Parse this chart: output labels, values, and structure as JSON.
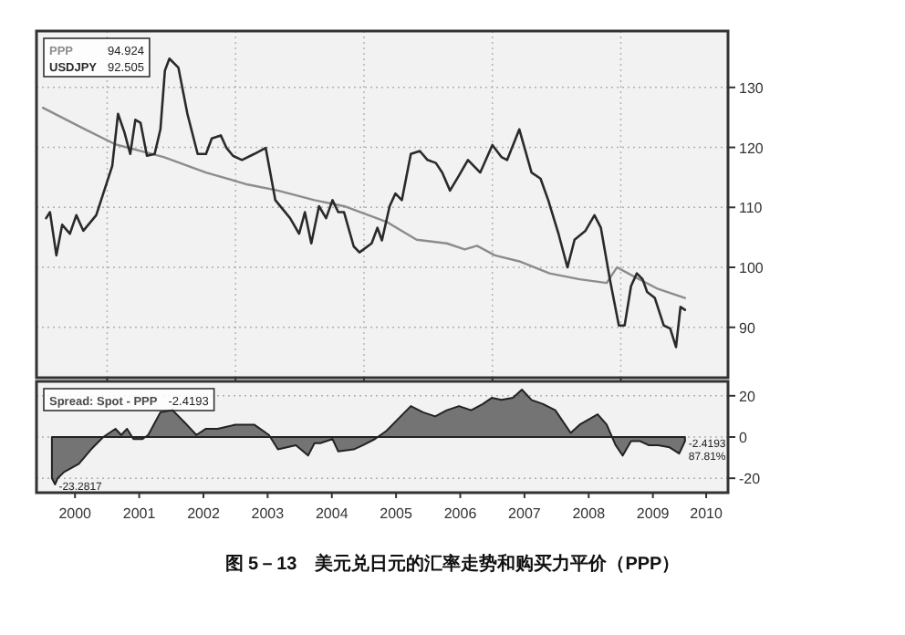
{
  "chart_data": [
    {
      "type": "line",
      "xlim": [
        1999.9,
        2010.67
      ],
      "ylim": [
        81.6,
        139.4
      ],
      "yticks": [
        90,
        100,
        110,
        120,
        130
      ],
      "xticks": [
        {
          "value": 2001,
          "label": null
        },
        {
          "value": 2003,
          "label": null
        },
        {
          "value": 2005,
          "label": null
        },
        {
          "value": 2007,
          "label": null
        },
        {
          "value": 2009,
          "label": null
        }
      ],
      "tick_labels": "y",
      "grid": true,
      "legend": "top left",
      "annotations": [
        "94.924",
        "92.505"
      ],
      "series": [
        {
          "name": "PPP",
          "color": "#8c8c8c",
          "x": [
            2000.0,
            2000.66,
            2001.13,
            2001.88,
            2002.54,
            2003.19,
            2003.66,
            2004.23,
            2004.69,
            2005.35,
            2005.82,
            2006.29,
            2006.57,
            2006.76,
            2007.04,
            2007.42,
            2007.89,
            2008.36,
            2008.78,
            2008.94,
            2009.2,
            2009.58,
            2010.0
          ],
          "values": [
            126.6,
            123,
            120.5,
            118.4,
            115.8,
            113.8,
            112.8,
            111.2,
            110.2,
            107.6,
            104.6,
            104,
            103,
            103.6,
            102,
            101,
            99,
            98,
            97.4,
            100,
            98.5,
            96.4,
            94.9
          ]
        },
        {
          "name": "USDJPY",
          "color": "#2a2a2a",
          "x": [
            2000.05,
            2000.11,
            2000.21,
            2000.3,
            2000.42,
            2000.52,
            2000.63,
            2000.83,
            2000.94,
            2001.08,
            2001.17,
            2001.27,
            2001.36,
            2001.44,
            2001.52,
            2001.62,
            2001.74,
            2001.83,
            2001.9,
            2001.97,
            2002.11,
            2002.25,
            2002.41,
            2002.54,
            2002.63,
            2002.77,
            2002.86,
            2002.96,
            2003.1,
            2003.29,
            2003.47,
            2003.62,
            2003.85,
            2003.99,
            2004.08,
            2004.18,
            2004.3,
            2004.41,
            2004.51,
            2004.6,
            2004.69,
            2004.84,
            2004.93,
            2005.12,
            2005.21,
            2005.28,
            2005.4,
            2005.49,
            2005.59,
            2005.73,
            2005.87,
            2005.99,
            2006.12,
            2006.22,
            2006.34,
            2006.48,
            2006.62,
            2006.81,
            2007.0,
            2007.14,
            2007.23,
            2007.42,
            2007.61,
            2007.75,
            2007.87,
            2008.03,
            2008.17,
            2008.28,
            2008.45,
            2008.59,
            2008.69,
            2008.83,
            2008.97,
            2009.06,
            2009.16,
            2009.25,
            2009.34,
            2009.41,
            2009.53,
            2009.67,
            2009.77,
            2009.86,
            2009.93,
            2010.0
          ],
          "values": [
            108.2,
            109.2,
            102,
            107.1,
            105.6,
            108.7,
            106.1,
            108.7,
            112.3,
            116.9,
            125.6,
            122.5,
            118.9,
            124.6,
            124.1,
            118.6,
            118.9,
            123,
            132.8,
            134.8,
            133.3,
            125.6,
            118.9,
            118.9,
            121.5,
            122,
            119.9,
            118.6,
            117.9,
            118.9,
            119.9,
            111.2,
            108.2,
            105.6,
            109.2,
            104,
            110.2,
            108.2,
            111.2,
            109.2,
            109.2,
            103.5,
            102.5,
            104,
            106.6,
            104.5,
            110.2,
            112.3,
            111.2,
            118.9,
            119.4,
            117.9,
            117.4,
            115.8,
            112.8,
            115.3,
            117.9,
            115.8,
            120.4,
            118.4,
            117.9,
            123,
            115.8,
            114.8,
            111.2,
            105.6,
            100,
            104.6,
            106.1,
            108.7,
            106.6,
            98,
            90.3,
            90.3,
            96.9,
            99,
            98,
            95.9,
            94.9,
            90.3,
            89.8,
            86.7,
            93.4,
            92.9
          ]
        }
      ]
    },
    {
      "type": "area",
      "xlim": [
        1999.9,
        2010.67
      ],
      "ylim": [
        -27,
        27
      ],
      "yticks": [
        -20,
        0,
        20
      ],
      "xticks": [
        {
          "value": 2000.5,
          "label": "2000"
        },
        {
          "value": 2001.5,
          "label": "2001"
        },
        {
          "value": 2002.5,
          "label": "2002"
        },
        {
          "value": 2003.5,
          "label": "2003"
        },
        {
          "value": 2004.5,
          "label": "2004"
        },
        {
          "value": 2005.5,
          "label": "2005"
        },
        {
          "value": 2006.5,
          "label": "2006"
        },
        {
          "value": 2007.5,
          "label": "2007"
        },
        {
          "value": 2008.5,
          "label": "2008"
        },
        {
          "value": 2009.5,
          "label": "2009"
        },
        {
          "value": 2010.33,
          "label": "2010"
        }
      ],
      "grid": "y",
      "legend": "top left",
      "title": "图 5－13　美元兑日元的汇率走势和购买力平价（PPP）",
      "annotations": [
        "-2.4193",
        "-23.2817",
        "-2.4193",
        "87.81%"
      ],
      "series": [
        {
          "name": "Spread: Spot - PPP",
          "color": "#4a4a4a",
          "x": [
            2000.14,
            2000.19,
            2000.23,
            2000.33,
            2000.56,
            2000.75,
            2000.94,
            2001.13,
            2001.22,
            2001.31,
            2001.41,
            2001.55,
            2001.64,
            2001.83,
            2002.02,
            2002.21,
            2002.39,
            2002.54,
            2002.72,
            2003.0,
            2003.29,
            2003.52,
            2003.66,
            2003.94,
            2004.13,
            2004.23,
            2004.32,
            2004.51,
            2004.6,
            2004.84,
            2004.98,
            2005.17,
            2005.35,
            2005.54,
            2005.73,
            2005.92,
            2006.11,
            2006.29,
            2006.48,
            2006.67,
            2006.85,
            2006.99,
            2007.14,
            2007.32,
            2007.46,
            2007.61,
            2007.79,
            2007.98,
            2008.22,
            2008.36,
            2008.64,
            2008.78,
            2008.92,
            2009.03,
            2009.16,
            2009.3,
            2009.44,
            2009.58,
            2009.76,
            2009.91,
            2010.0
          ],
          "values": [
            -20,
            -23,
            -20,
            -17,
            -13,
            -6,
            0,
            4,
            1,
            4,
            -1,
            -1,
            1,
            12,
            13,
            7,
            1,
            4,
            4,
            6,
            6,
            1,
            -6,
            -4,
            -9,
            -3,
            -3,
            -1,
            -7,
            -6,
            -4,
            -1,
            3,
            9,
            15,
            12,
            10,
            13,
            15,
            13,
            16,
            19,
            18,
            19,
            23,
            18,
            16,
            13,
            2,
            6,
            11,
            6,
            -4,
            -9,
            -2,
            -2,
            -4,
            -4,
            -5,
            -8,
            -2
          ]
        }
      ]
    }
  ]
}
